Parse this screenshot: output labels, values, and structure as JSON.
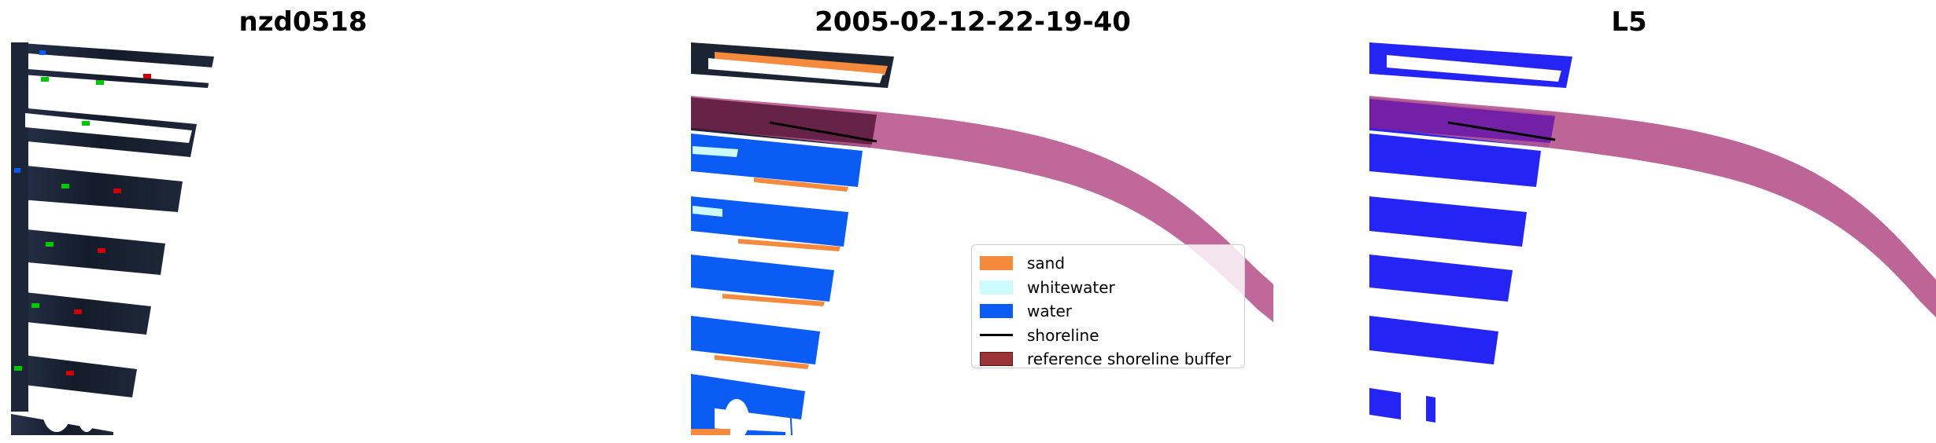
{
  "panels": [
    {
      "title": "nzd0518"
    },
    {
      "title": "2005-02-12-22-19-40"
    },
    {
      "title": "L5"
    }
  ],
  "legend": {
    "items": [
      {
        "label": "sand",
        "kind": "patch",
        "color": "#f58a3c"
      },
      {
        "label": "whitewater",
        "kind": "patch",
        "color": "#ccfcfc"
      },
      {
        "label": "water",
        "kind": "patch",
        "color": "#0a5cf5"
      },
      {
        "label": "shoreline",
        "kind": "line",
        "color": "#000000"
      },
      {
        "label": "reference shoreline buffer",
        "kind": "patch",
        "color": "#9b3438"
      }
    ]
  },
  "colors": {
    "imagery_dark": "#1b2433",
    "buffer": "#b8588e",
    "class_blue": "#2424f5",
    "marker_green": "#00c800",
    "marker_red": "#d00000"
  }
}
